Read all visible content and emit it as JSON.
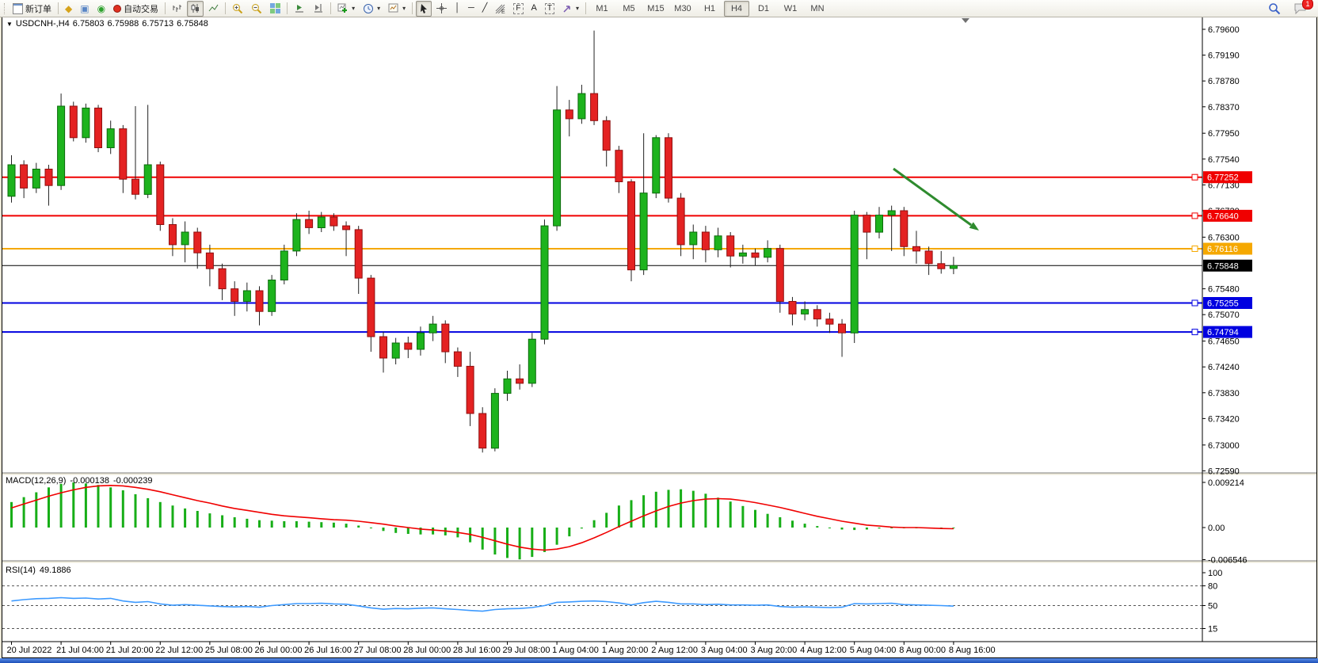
{
  "toolbar": {
    "new_order": "新订单",
    "autotrading": "自动交易",
    "timeframes": [
      "M1",
      "M5",
      "M15",
      "M30",
      "H1",
      "H4",
      "D1",
      "W1",
      "MN"
    ],
    "active_timeframe": "H4",
    "notification_count": "1",
    "icons": {
      "diamond": "◆",
      "terminal": "▣",
      "signal": "◉",
      "caret": "▾",
      "vline": "│",
      "hline": "─",
      "trendline": "╱",
      "text": "A",
      "textlabel": "T",
      "fibo": "E",
      "channel": "F"
    }
  },
  "chart": {
    "title": {
      "collapse": "▼",
      "symbol": "USDCNH-,H4",
      "open": "6.75803",
      "high": "6.75988",
      "low": "6.75713",
      "close": "6.75848"
    },
    "macd_label": {
      "name": "MACD(12,26,9)",
      "main": "-0.000138",
      "signal": "-0.000239"
    },
    "rsi_label": {
      "name": "RSI(14)",
      "value": "49.1886"
    }
  },
  "chart_data": {
    "type": "candlestick",
    "symbol": "USDCNH",
    "period": "H4",
    "y_range": [
      6.7259,
      6.796
    ],
    "price_ticks": [
      "6.79600",
      "6.79190",
      "6.78780",
      "6.78370",
      "6.77950",
      "6.77540",
      "6.77130",
      "6.76720",
      "6.76300",
      "6.75480",
      "6.75070",
      "6.74650",
      "6.74240",
      "6.73830",
      "6.73420",
      "6.73000",
      "6.72590"
    ],
    "hlines": [
      {
        "value": 6.77252,
        "label": "6.77252",
        "color": "#f00000",
        "type": "resistance"
      },
      {
        "value": 6.7664,
        "label": "6.76640",
        "color": "#f00000",
        "type": "resistance"
      },
      {
        "value": 6.76116,
        "label": "6.76116",
        "color": "#f5a800",
        "type": "pivot"
      },
      {
        "value": 6.75255,
        "label": "6.75255",
        "color": "#0000e0",
        "type": "support"
      },
      {
        "value": 6.74794,
        "label": "6.74794",
        "color": "#0000e0",
        "type": "support"
      }
    ],
    "current_price": {
      "value": 6.75848,
      "label": "6.75848",
      "color": "#000000"
    },
    "time_labels": [
      "20 Jul 2022",
      "21 Jul 04:00",
      "21 Jul 20:00",
      "22 Jul 12:00",
      "25 Jul 08:00",
      "26 Jul 00:00",
      "26 Jul 16:00",
      "27 Jul 08:00",
      "28 Jul 00:00",
      "28 Jul 16:00",
      "29 Jul 08:00",
      "1 Aug 04:00",
      "1 Aug 20:00",
      "2 Aug 12:00",
      "3 Aug 04:00",
      "3 Aug 20:00",
      "4 Aug 12:00",
      "5 Aug 04:00",
      "8 Aug 00:00",
      "8 Aug 16:00"
    ],
    "ohlc": [
      [
        6.7695,
        6.776,
        6.7685,
        6.7745
      ],
      [
        6.7745,
        6.7752,
        6.7692,
        6.7708
      ],
      [
        6.7708,
        6.7748,
        6.77,
        6.7738
      ],
      [
        6.7738,
        6.7745,
        6.768,
        6.7712
      ],
      [
        6.7712,
        6.7858,
        6.7705,
        6.7838
      ],
      [
        6.7838,
        6.7845,
        6.7782,
        6.7788
      ],
      [
        6.7788,
        6.7842,
        6.778,
        6.7835
      ],
      [
        6.7835,
        6.784,
        6.7765,
        6.7772
      ],
      [
        6.7772,
        6.7815,
        6.7762,
        6.7802
      ],
      [
        6.7802,
        6.7808,
        6.77,
        6.7722
      ],
      [
        6.7722,
        6.7838,
        6.769,
        6.7698
      ],
      [
        6.7698,
        6.784,
        6.7692,
        6.7745
      ],
      [
        6.7745,
        6.775,
        6.764,
        6.765
      ],
      [
        6.765,
        6.766,
        6.76,
        6.7618
      ],
      [
        6.7618,
        6.7655,
        6.759,
        6.7638
      ],
      [
        6.7638,
        6.7645,
        6.758,
        6.7605
      ],
      [
        6.7605,
        6.7618,
        6.7552,
        6.758
      ],
      [
        6.758,
        6.7588,
        6.753,
        6.7548
      ],
      [
        6.7548,
        6.756,
        6.7505,
        6.7528
      ],
      [
        6.7528,
        6.7558,
        6.7512,
        6.7545
      ],
      [
        6.7545,
        6.7552,
        6.749,
        6.7512
      ],
      [
        6.7512,
        6.757,
        6.7505,
        6.7562
      ],
      [
        6.7562,
        6.7618,
        6.7555,
        6.7608
      ],
      [
        6.7608,
        6.7668,
        6.76,
        6.7658
      ],
      [
        6.7658,
        6.7672,
        6.7635,
        6.7645
      ],
      [
        6.7645,
        6.767,
        6.7638,
        6.7662
      ],
      [
        6.7662,
        6.7668,
        6.764,
        6.7648
      ],
      [
        6.7648,
        6.7655,
        6.76,
        6.7642
      ],
      [
        6.7642,
        6.7648,
        6.754,
        6.7565
      ],
      [
        6.7565,
        6.757,
        6.7448,
        6.7472
      ],
      [
        6.7472,
        6.748,
        6.7415,
        6.7438
      ],
      [
        6.7438,
        6.747,
        6.7428,
        6.7462
      ],
      [
        6.7462,
        6.7472,
        6.7438,
        6.7452
      ],
      [
        6.7452,
        6.7488,
        6.7442,
        6.7478
      ],
      [
        6.7478,
        6.7505,
        6.7465,
        6.7492
      ],
      [
        6.7492,
        6.7498,
        6.743,
        6.7448
      ],
      [
        6.7448,
        6.7455,
        6.7408,
        6.7425
      ],
      [
        6.7425,
        6.7448,
        6.733,
        6.735
      ],
      [
        6.735,
        6.736,
        6.7288,
        6.7295
      ],
      [
        6.7295,
        6.739,
        6.729,
        6.7382
      ],
      [
        6.7382,
        6.7418,
        6.737,
        6.7405
      ],
      [
        6.7405,
        6.7428,
        6.7388,
        6.7398
      ],
      [
        6.7398,
        6.7478,
        6.7392,
        6.7468
      ],
      [
        6.7468,
        6.7658,
        6.746,
        6.7648
      ],
      [
        6.7648,
        6.787,
        6.764,
        6.7832
      ],
      [
        6.7832,
        6.7848,
        6.779,
        6.7818
      ],
      [
        6.7818,
        6.7872,
        6.781,
        6.7858
      ],
      [
        6.7858,
        6.7958,
        6.7808,
        6.7815
      ],
      [
        6.7815,
        6.7822,
        6.7742,
        6.7768
      ],
      [
        6.7768,
        6.7775,
        6.77,
        6.7718
      ],
      [
        6.7718,
        6.7722,
        6.756,
        6.7578
      ],
      [
        6.7578,
        6.7795,
        6.757,
        6.77
      ],
      [
        6.77,
        6.7792,
        6.7692,
        6.7788
      ],
      [
        6.7788,
        6.7795,
        6.7685,
        6.7692
      ],
      [
        6.7692,
        6.77,
        6.76,
        6.7618
      ],
      [
        6.7618,
        6.765,
        6.7595,
        6.7638
      ],
      [
        6.7638,
        6.7648,
        6.759,
        6.761
      ],
      [
        6.761,
        6.7645,
        6.7598,
        6.7632
      ],
      [
        6.7632,
        6.7638,
        6.7582,
        6.76
      ],
      [
        6.76,
        6.7618,
        6.7588,
        6.7605
      ],
      [
        6.7605,
        6.7612,
        6.7585,
        6.7598
      ],
      [
        6.7598,
        6.7625,
        6.759,
        6.7612
      ],
      [
        6.7612,
        6.7618,
        6.751,
        6.7528
      ],
      [
        6.7528,
        6.7535,
        6.749,
        6.7508
      ],
      [
        6.7508,
        6.7528,
        6.7498,
        6.7515
      ],
      [
        6.7515,
        6.7522,
        6.7488,
        6.75
      ],
      [
        6.75,
        6.751,
        6.7478,
        6.7492
      ],
      [
        6.7492,
        6.75,
        6.744,
        6.7478
      ],
      [
        6.7478,
        6.7672,
        6.7462,
        6.7665
      ],
      [
        6.7665,
        6.767,
        6.7595,
        6.7638
      ],
      [
        6.7638,
        6.7678,
        6.7628,
        6.7665
      ],
      [
        6.7665,
        6.768,
        6.7608,
        6.7672
      ],
      [
        6.7672,
        6.7678,
        6.76,
        6.7615
      ],
      [
        6.7615,
        6.764,
        6.7588,
        6.7608
      ],
      [
        6.7608,
        6.7615,
        6.757,
        6.7588
      ],
      [
        6.7588,
        6.7608,
        6.7572,
        6.758
      ],
      [
        6.75803,
        6.75988,
        6.75713,
        6.75848
      ]
    ],
    "macd": {
      "axis_labels": [
        "0.009214",
        "0.00",
        "-0.006546"
      ],
      "hist": [
        0.0052,
        0.0062,
        0.0072,
        0.0082,
        0.0089,
        0.0092,
        0.009,
        0.0087,
        0.0082,
        0.0076,
        0.0068,
        0.006,
        0.0052,
        0.0045,
        0.0039,
        0.0034,
        0.0029,
        0.0025,
        0.0021,
        0.0018,
        0.0015,
        0.0014,
        0.0013,
        0.0013,
        0.0012,
        0.0011,
        0.001,
        0.0008,
        0.0004,
        -0.0001,
        -0.0007,
        -0.0011,
        -0.0013,
        -0.0014,
        -0.0014,
        -0.0016,
        -0.002,
        -0.003,
        -0.0045,
        -0.0055,
        -0.0062,
        -0.0065,
        -0.006,
        -0.005,
        -0.0035,
        -0.0018,
        -0.0002,
        0.0015,
        0.003,
        0.0045,
        0.0056,
        0.0066,
        0.0073,
        0.0077,
        0.0078,
        0.0075,
        0.0069,
        0.0061,
        0.0053,
        0.0044,
        0.0036,
        0.0028,
        0.0021,
        0.0014,
        0.0008,
        0.0003,
        -0.0001,
        -0.0004,
        -0.0005,
        -0.0004,
        -0.0002,
        -0.0001,
        0.0,
        -0.0001,
        -0.0001,
        -0.0002,
        -0.000138
      ],
      "signal": [
        0.004,
        0.0048,
        0.0056,
        0.0064,
        0.0071,
        0.0077,
        0.0082,
        0.0085,
        0.0086,
        0.0085,
        0.0082,
        0.0078,
        0.0073,
        0.0067,
        0.0061,
        0.0055,
        0.005,
        0.0044,
        0.0039,
        0.0035,
        0.0031,
        0.0027,
        0.0024,
        0.0022,
        0.002,
        0.0018,
        0.0016,
        0.0015,
        0.0013,
        0.001,
        0.0007,
        0.0003,
        0.0,
        -0.0003,
        -0.0005,
        -0.0007,
        -0.001,
        -0.0014,
        -0.002,
        -0.0027,
        -0.0034,
        -0.004,
        -0.0044,
        -0.0046,
        -0.0044,
        -0.0039,
        -0.0031,
        -0.0021,
        -0.001,
        0.0002,
        0.0013,
        0.0024,
        0.0034,
        0.0043,
        0.005,
        0.0055,
        0.0058,
        0.0059,
        0.0058,
        0.0055,
        0.0051,
        0.0046,
        0.0041,
        0.0035,
        0.0029,
        0.0023,
        0.0018,
        0.0013,
        0.0009,
        0.0005,
        0.0003,
        0.0001,
        0.0,
        0.0,
        -0.0001,
        -0.0002,
        -0.000239
      ]
    },
    "rsi": {
      "levels": [
        100,
        80,
        50,
        15
      ],
      "dashed_levels": [
        80,
        50,
        15
      ],
      "values": [
        57,
        59,
        60.5,
        61,
        62,
        61,
        61.5,
        60,
        61,
        57,
        55,
        56,
        52.5,
        50.5,
        51.5,
        50.5,
        49.5,
        48.5,
        48,
        48.5,
        47.5,
        50,
        51.5,
        53,
        53,
        53.5,
        52.5,
        52,
        49.5,
        46.5,
        44.5,
        45.5,
        45,
        46,
        46.5,
        45,
        44,
        42.5,
        41.5,
        44,
        45,
        45.5,
        47,
        50,
        55,
        55.5,
        56.5,
        57,
        56,
        54,
        51,
        54.5,
        56.5,
        55,
        52.5,
        52.5,
        51.5,
        52,
        51,
        51,
        50.5,
        51,
        48.5,
        47.5,
        48,
        47.5,
        47,
        47.5,
        53,
        52.5,
        53,
        53.5,
        51.5,
        51,
        50.5,
        50,
        49.19
      ]
    },
    "annotation_arrow": {
      "color": "#2e8b2e",
      "direction": "down-right"
    }
  }
}
